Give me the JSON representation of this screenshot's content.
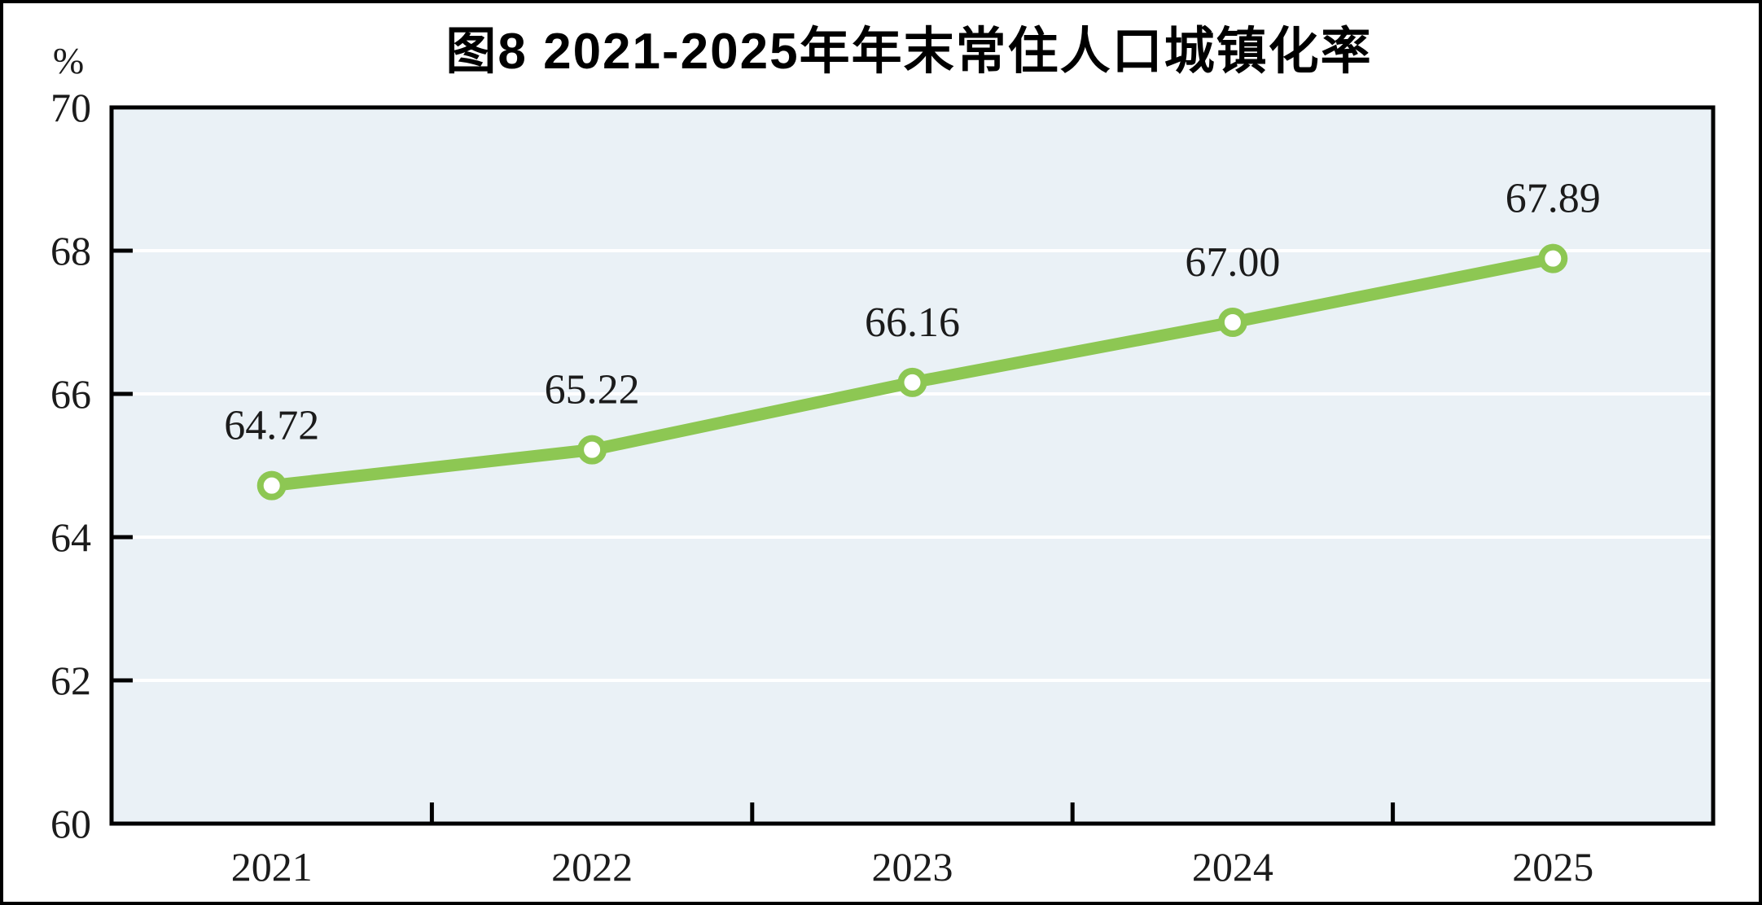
{
  "chart_data": {
    "type": "line",
    "title": "图8  2021-2025年年末常住人口城镇化率",
    "unit_label": "%",
    "categories": [
      "2021",
      "2022",
      "2023",
      "2024",
      "2025"
    ],
    "series": [
      {
        "values": [
          64.72,
          65.22,
          66.16,
          67.0,
          67.89
        ],
        "data_labels": [
          "64.72",
          "65.22",
          "66.16",
          "67.00",
          "67.89"
        ]
      }
    ],
    "ylim": [
      60,
      70
    ],
    "yticks": [
      60,
      62,
      64,
      66,
      68,
      70
    ],
    "ytick_labels": [
      "60",
      "62",
      "64",
      "66",
      "68",
      "70"
    ],
    "grid": "horizontal-white-lines-at-inner-yticks",
    "legend": "none",
    "colors": {
      "line": "#8dc753",
      "marker_fill": "#ffffff",
      "marker_ring": "#8dc753",
      "plot_background": "#eaf1f6",
      "gridline": "#ffffff",
      "axis_frame": "#000000",
      "text": "#1b1b1b"
    }
  }
}
